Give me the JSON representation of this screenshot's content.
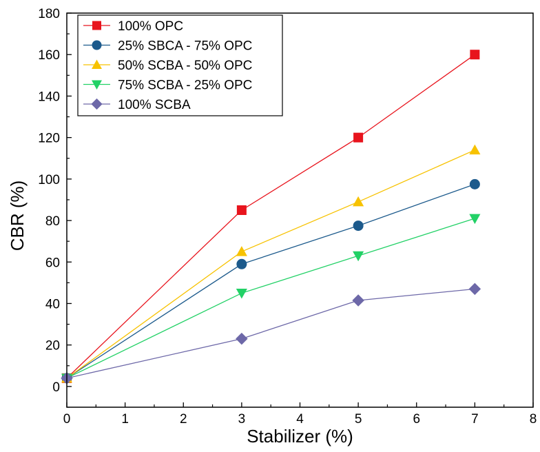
{
  "chart_data": {
    "type": "line",
    "xlabel": "Stabilizer (%)",
    "ylabel": "CBR (%)",
    "xlim": [
      0,
      8
    ],
    "ylim": [
      -10,
      180
    ],
    "xticks": [
      0,
      1,
      2,
      3,
      4,
      5,
      6,
      7,
      8
    ],
    "yticks": [
      0,
      20,
      40,
      60,
      80,
      100,
      120,
      140,
      160,
      180
    ],
    "legend_position": "top-left",
    "x": [
      0,
      3,
      5,
      7
    ],
    "series": [
      {
        "name": "100% OPC",
        "color": "#e8141d",
        "marker": "square",
        "values": [
          4,
          85,
          120,
          160
        ]
      },
      {
        "name": "25% SBCA - 75% OPC",
        "color": "#1c5a8c",
        "marker": "circle",
        "values": [
          4,
          59,
          77.5,
          97.5
        ]
      },
      {
        "name": "50% SCBA - 50% OPC",
        "color": "#f7c200",
        "marker": "triangle-up",
        "values": [
          4,
          65,
          89,
          114
        ]
      },
      {
        "name": "75% SCBA - 25% OPC",
        "color": "#22d166",
        "marker": "triangle-down",
        "values": [
          4,
          45,
          63,
          81
        ]
      },
      {
        "name": "100% SCBA",
        "color": "#6d68a8",
        "marker": "diamond",
        "values": [
          4,
          23,
          41.5,
          47
        ]
      }
    ]
  }
}
